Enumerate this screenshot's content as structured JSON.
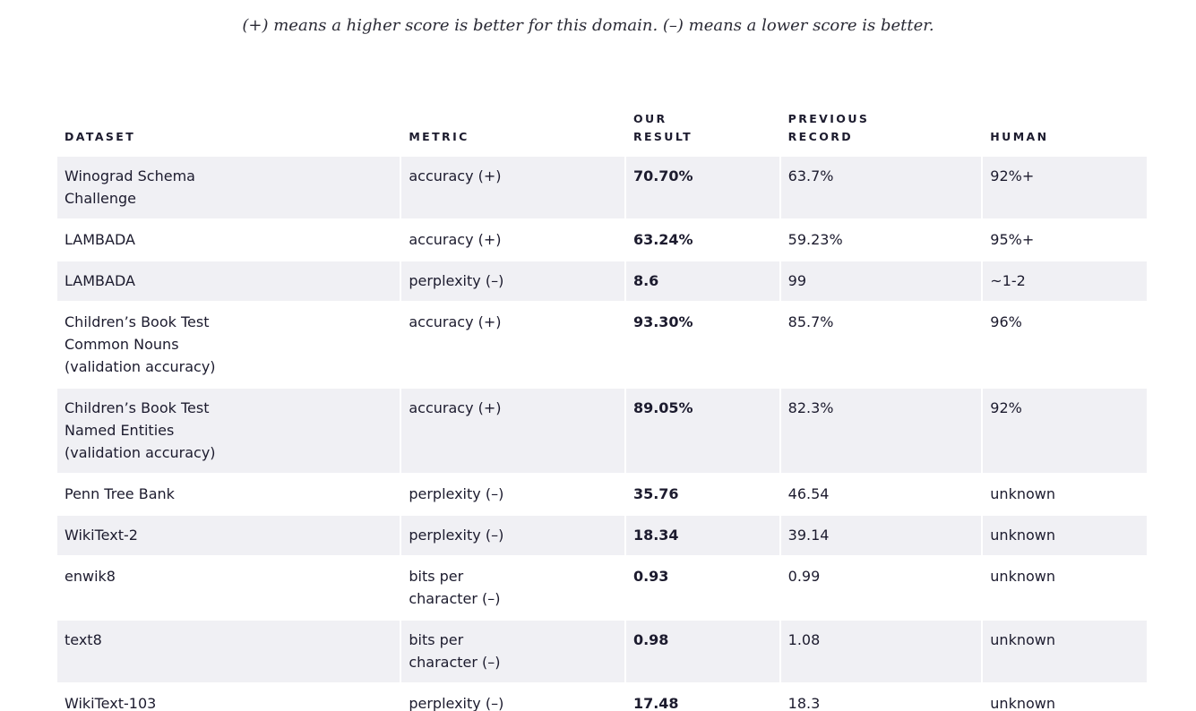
{
  "caption": "(+) means a higher score is better for this domain. (–) means a lower score is better.",
  "table": {
    "headers": {
      "dataset": "DATASET",
      "metric": "METRIC",
      "our_result": "OUR\nRESULT",
      "previous_record": "PREVIOUS\nRECORD",
      "human": "HUMAN"
    },
    "rows": [
      {
        "dataset": "Winograd Schema\nChallenge",
        "metric": "accuracy (+)",
        "our_result": "70.70%",
        "previous_record": "63.7%",
        "human": "92%+"
      },
      {
        "dataset": "LAMBADA",
        "metric": "accuracy (+)",
        "our_result": "63.24%",
        "previous_record": "59.23%",
        "human": "95%+"
      },
      {
        "dataset": "LAMBADA",
        "metric": "perplexity (–)",
        "our_result": "8.6",
        "previous_record": "99",
        "human": "~1-2"
      },
      {
        "dataset": "Children’s Book Test\nCommon Nouns\n(validation accuracy)",
        "metric": "accuracy (+)",
        "our_result": "93.30%",
        "previous_record": "85.7%",
        "human": "96%"
      },
      {
        "dataset": "Children’s Book Test\nNamed Entities\n(validation accuracy)",
        "metric": "accuracy (+)",
        "our_result": "89.05%",
        "previous_record": "82.3%",
        "human": "92%"
      },
      {
        "dataset": "Penn Tree Bank",
        "metric": "perplexity (–)",
        "our_result": "35.76",
        "previous_record": "46.54",
        "human": "unknown"
      },
      {
        "dataset": "WikiText-2",
        "metric": "perplexity (–)",
        "our_result": "18.34",
        "previous_record": "39.14",
        "human": "unknown"
      },
      {
        "dataset": "enwik8",
        "metric": "bits per\ncharacter (–)",
        "our_result": "0.93",
        "previous_record": "0.99",
        "human": "unknown"
      },
      {
        "dataset": "text8",
        "metric": "bits per\ncharacter (–)",
        "our_result": "0.98",
        "previous_record": "1.08",
        "human": "unknown"
      },
      {
        "dataset": "WikiText-103",
        "metric": "perplexity (–)",
        "our_result": "17.48",
        "previous_record": "18.3",
        "human": "unknown"
      }
    ]
  },
  "colors": {
    "row_shade": "#f0f0f4",
    "text": "#1c1b2e"
  }
}
